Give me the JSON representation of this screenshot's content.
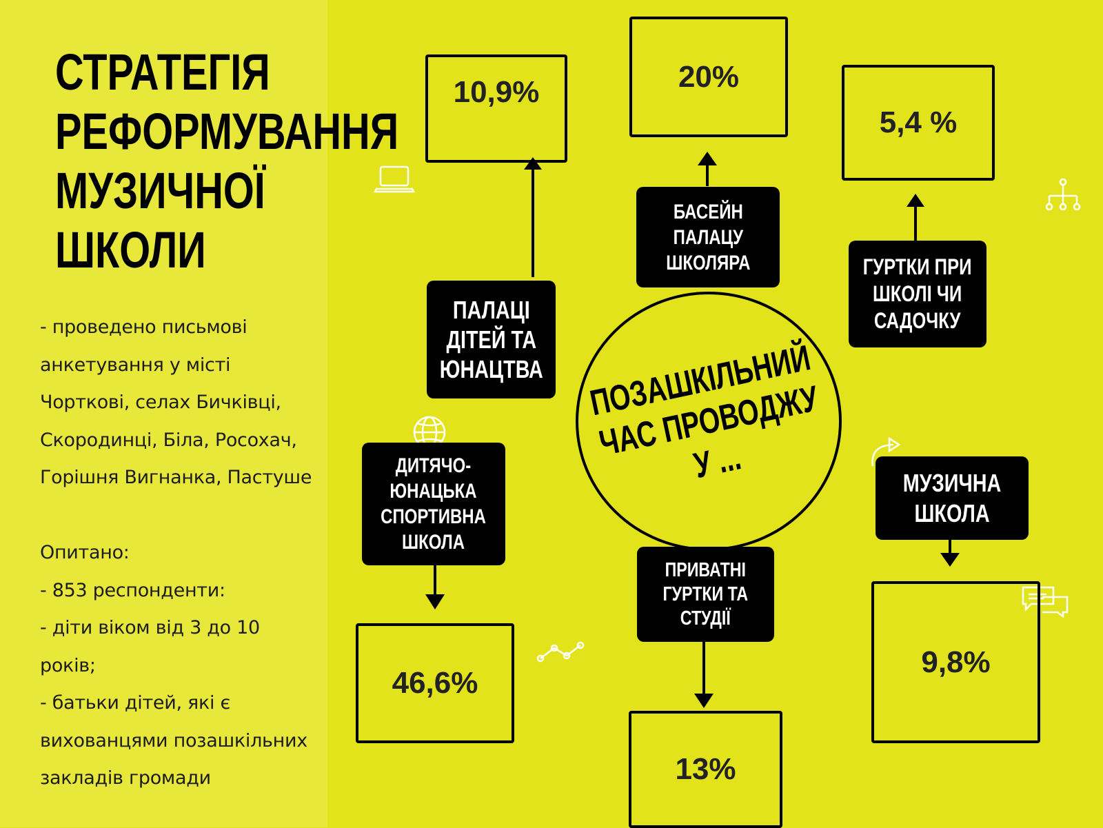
{
  "title": {
    "line1": "СТРАТЕГІЯ",
    "line2": "РЕФОРМУВАННЯ",
    "line3": "МУЗИЧНОЇ",
    "line4": "ШКОЛИ"
  },
  "body": {
    "l1": "- проведено письмові",
    "l2": "анкетування у місті",
    "l3": "Чорткові, селах Бичківці,",
    "l4": "Скородинці, Біла, Росохач,",
    "l5": "Горішня Вигнанка, Пастуше",
    "l6": "Опитано:",
    "l7": "- 853 респонденти:",
    "l8": "- діти віком від 3 до 10",
    "l9": "років;",
    "l10": "- батьки дітей, які є",
    "l11": "вихованцями позашкільних",
    "l12": "закладів громади"
  },
  "center": {
    "text": "ПОЗАШКІЛЬНИЙ\nЧАС ПРОВОДЖУ\nУ ..."
  },
  "nodes": {
    "palaces": {
      "label": "ПАЛАЦІ\nДІТЕЙ ТА\nЮНАЦТВА",
      "value": "10,9%"
    },
    "pool": {
      "label": "БАСЕЙН\nПАЛАЦУ\nШКОЛЯРА",
      "value": "20%"
    },
    "clubs": {
      "label": "ГУРТКИ ПРИ\nШКОЛІ ЧИ\nСАДОЧКУ",
      "value": "5,4 %"
    },
    "sport": {
      "label": "ДИТЯЧО-\nЮНАЦЬКА\nСПОРТИВНА\nШКОЛА",
      "value": "46,6%"
    },
    "private": {
      "label": "ПРИВАТНІ\nГУРТКИ ТА\nСТУДІЇ",
      "value": "13%"
    },
    "music": {
      "label": "МУЗИЧНА\nШКОЛА",
      "value": "9,8%"
    }
  },
  "icons": [
    "laptop-icon",
    "org-chart-icon",
    "globe-icon",
    "redo-arrow-icon",
    "line-graph-icon",
    "chat-bubbles-icon"
  ],
  "colors": {
    "background": "#e3e31b",
    "left_panel": "#e8e83b",
    "label_bg": "#000000"
  }
}
